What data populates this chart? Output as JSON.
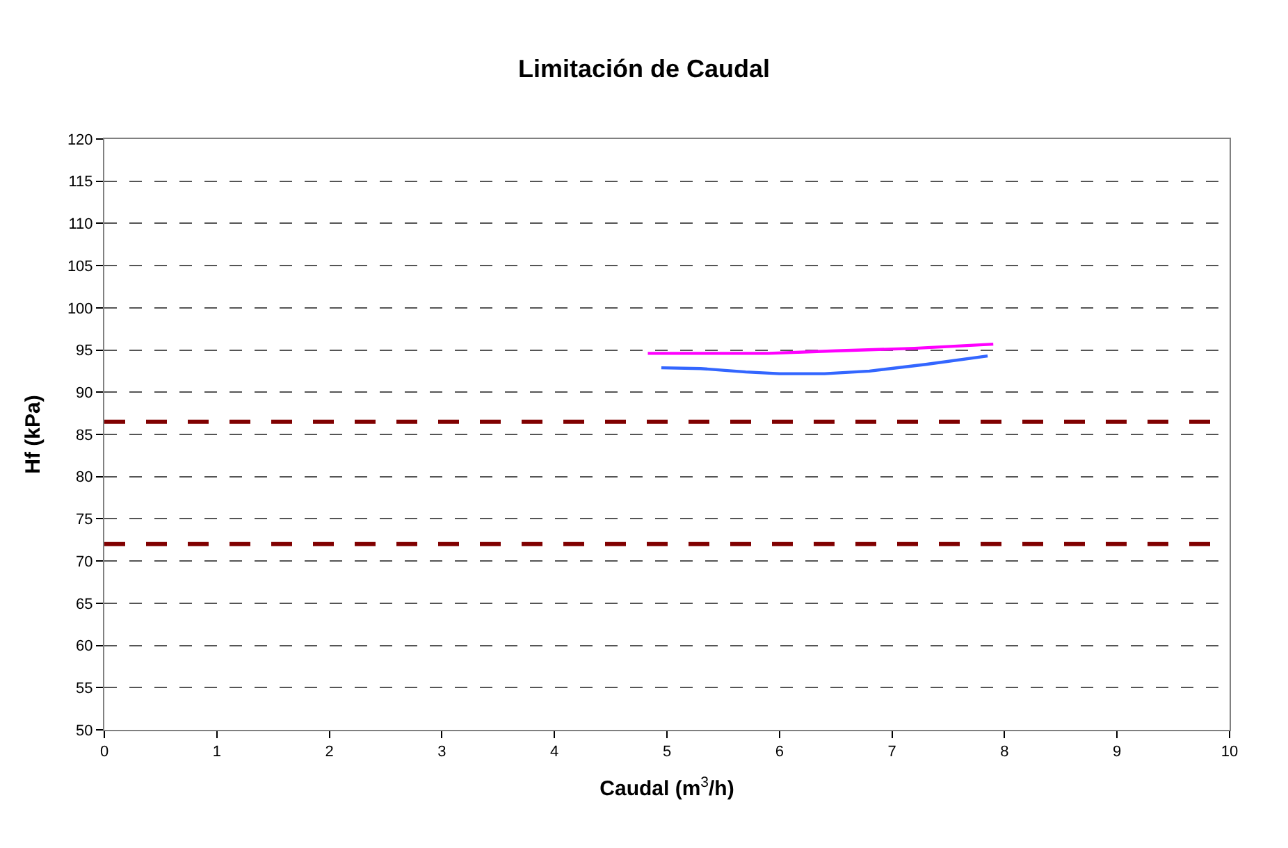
{
  "chart_data": {
    "type": "line",
    "title": "Limitación de Caudal",
    "xlabel": "Caudal (m$^{3}$/h)",
    "ylabel": "Hf (kPa)",
    "xlim": [
      0,
      10
    ],
    "xticks": [
      0,
      1,
      2,
      3,
      4,
      5,
      6,
      7,
      8,
      9,
      10
    ],
    "ylim": [
      50,
      120
    ],
    "yticks": [
      50,
      55,
      60,
      65,
      70,
      75,
      80,
      85,
      90,
      95,
      100,
      105,
      110,
      115,
      120
    ],
    "grid": "y",
    "marker": "none",
    "series": [
      {
        "color": "#ff00ff",
        "x": [
          4.83,
          5.3,
          5.9,
          6.5,
          7.2,
          7.9
        ],
        "values": [
          94.6,
          94.6,
          94.6,
          94.9,
          95.2,
          95.7
        ]
      },
      {
        "color": "#3366ff",
        "x": [
          4.95,
          5.3,
          5.7,
          6.0,
          6.4,
          6.8,
          7.3,
          7.85
        ],
        "values": [
          92.9,
          92.8,
          92.4,
          92.2,
          92.2,
          92.5,
          93.3,
          94.3
        ]
      }
    ],
    "ref_lines": [
      {
        "axis": "y",
        "value": 86.5,
        "color": "#800000",
        "line_style": "dashed"
      },
      {
        "axis": "y",
        "value": 72,
        "color": "#800000",
        "line_style": "dashed"
      }
    ]
  }
}
